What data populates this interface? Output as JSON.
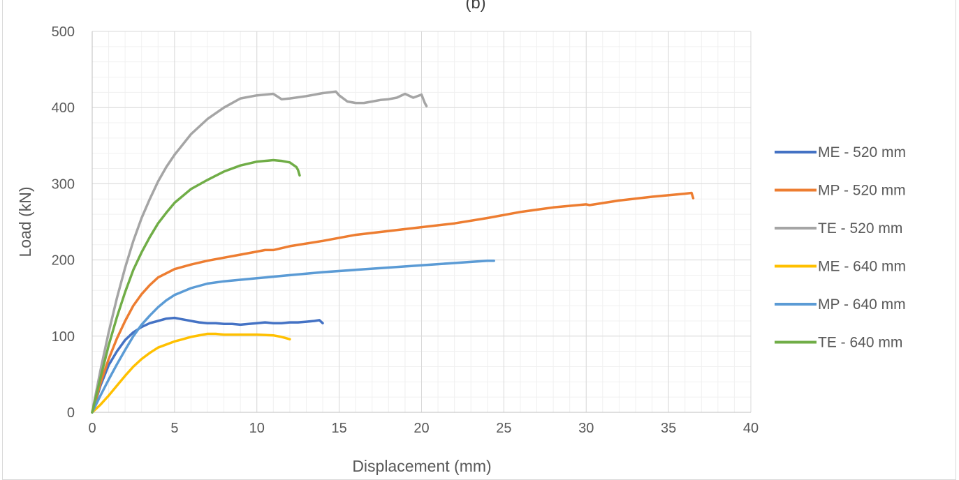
{
  "chart_data": {
    "type": "line",
    "title": "(b)",
    "xlabel": "Displacement (mm)",
    "ylabel": "Load (kN)",
    "xlim": [
      0,
      40
    ],
    "ylim": [
      0,
      500
    ],
    "xticks": [
      0,
      5,
      10,
      15,
      20,
      25,
      30,
      35,
      40
    ],
    "yticks": [
      0,
      100,
      200,
      300,
      400,
      500
    ],
    "grid": "major and minor",
    "legend_position": "right",
    "series": [
      {
        "name": "ME - 520 mm",
        "color": "#4472C4",
        "x": [
          0,
          0.5,
          1,
          1.5,
          2,
          2.5,
          3,
          3.5,
          4,
          4.5,
          5,
          5.5,
          6,
          6.5,
          7,
          7.5,
          8,
          8.5,
          9,
          9.5,
          10,
          10.5,
          11,
          11.5,
          12,
          12.5,
          13,
          13.5,
          13.8,
          14.0
        ],
        "y": [
          0,
          35,
          62,
          80,
          95,
          105,
          112,
          117,
          120,
          123,
          124,
          122,
          120,
          118,
          117,
          117,
          116,
          116,
          115,
          116,
          117,
          118,
          117,
          117,
          118,
          118,
          119,
          120,
          121,
          117
        ]
      },
      {
        "name": "MP - 520 mm",
        "color": "#ED7D31",
        "x": [
          0,
          0.5,
          1,
          1.5,
          2,
          2.5,
          3,
          3.5,
          4,
          5,
          6,
          7,
          8,
          9,
          10,
          10.5,
          11,
          12,
          14,
          16,
          18,
          20,
          22,
          24,
          26,
          28,
          30,
          30.2,
          32,
          34,
          36,
          36.4,
          36.5
        ],
        "y": [
          0,
          38,
          70,
          97,
          120,
          140,
          155,
          167,
          177,
          188,
          194,
          199,
          203,
          207,
          211,
          213,
          213,
          218,
          225,
          233,
          238,
          243,
          248,
          255,
          263,
          269,
          273,
          272,
          278,
          283,
          287,
          288,
          281
        ]
      },
      {
        "name": "TE - 520 mm",
        "color": "#A5A5A5",
        "x": [
          0,
          0.5,
          1,
          1.5,
          2,
          2.5,
          3,
          3.5,
          4,
          4.5,
          5,
          6,
          7,
          8,
          9,
          10,
          11,
          11.5,
          12,
          13,
          14,
          14.8,
          15,
          15.5,
          16,
          16.5,
          17,
          17.5,
          18,
          18.5,
          19,
          19.5,
          20,
          20.2,
          20.3
        ],
        "y": [
          0,
          55,
          105,
          150,
          190,
          225,
          255,
          280,
          303,
          322,
          338,
          365,
          385,
          400,
          412,
          416,
          418,
          411,
          412,
          415,
          419,
          421,
          416,
          408,
          406,
          406,
          408,
          410,
          411,
          413,
          418,
          413,
          417,
          406,
          402
        ]
      },
      {
        "name": "ME - 640 mm",
        "color": "#FFC000",
        "x": [
          0,
          0.5,
          1,
          1.5,
          2,
          2.5,
          3,
          3.5,
          4,
          5,
          6,
          7,
          7.5,
          8,
          9,
          10,
          11,
          11.5,
          12
        ],
        "y": [
          0,
          10,
          22,
          35,
          48,
          60,
          70,
          78,
          85,
          93,
          99,
          103,
          103,
          102,
          102,
          102,
          101,
          99,
          96
        ]
      },
      {
        "name": "MP - 640 mm",
        "color": "#5B9BD5",
        "x": [
          0,
          0.5,
          1,
          1.5,
          2,
          2.5,
          3,
          3.5,
          4,
          4.5,
          5,
          6,
          7,
          8,
          9,
          10,
          12,
          14,
          16,
          18,
          20,
          22,
          24,
          24.4
        ],
        "y": [
          0,
          22,
          43,
          63,
          82,
          100,
          115,
          127,
          138,
          147,
          154,
          163,
          169,
          172,
          174,
          176,
          180,
          184,
          187,
          190,
          193,
          196,
          199,
          199
        ]
      },
      {
        "name": "TE - 640 mm",
        "color": "#70AD47",
        "x": [
          0,
          0.5,
          1,
          1.5,
          2,
          2.5,
          3,
          3.5,
          4,
          4.5,
          5,
          6,
          7,
          8,
          9,
          10,
          11,
          11.5,
          12,
          12.4,
          12.5,
          12.6
        ],
        "y": [
          0,
          45,
          88,
          125,
          158,
          187,
          210,
          230,
          248,
          262,
          275,
          293,
          305,
          316,
          324,
          329,
          331,
          330,
          328,
          322,
          318,
          311
        ]
      }
    ]
  }
}
